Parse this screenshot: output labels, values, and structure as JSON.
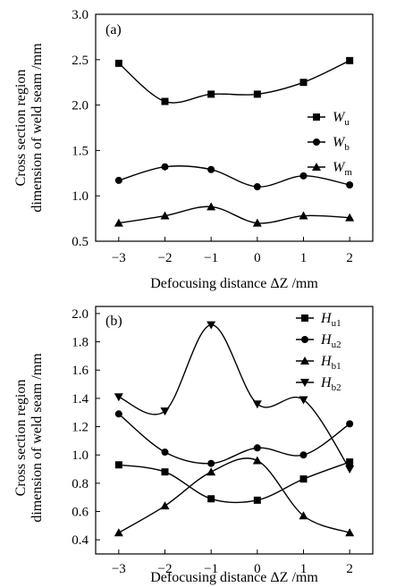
{
  "chart_data": [
    {
      "panel": "(a)",
      "type": "line",
      "xlabel": "Defocusing distance ΔZ /mm",
      "ylabel": [
        "Cross section region",
        "dimension of weld seam /mm"
      ],
      "x": [
        -3,
        -2,
        -1,
        0,
        1,
        2
      ],
      "x_tick_labels": [
        "−3",
        "−2",
        "−1",
        "0",
        "1",
        "2"
      ],
      "ylim": [
        0.5,
        3.0
      ],
      "y_ticks": [
        0.5,
        1.0,
        1.5,
        2.0,
        2.5,
        3.0
      ],
      "y_tick_labels": [
        "0.5",
        "1.0",
        "1.5",
        "2.0",
        "2.5",
        "3.0"
      ],
      "legend_position": "right-middle",
      "grid": false,
      "series": [
        {
          "name": "W",
          "sub": "u",
          "marker": "square",
          "values": [
            2.46,
            2.04,
            2.12,
            2.12,
            2.25,
            2.49
          ]
        },
        {
          "name": "W",
          "sub": "b",
          "marker": "circle",
          "values": [
            1.17,
            1.32,
            1.29,
            1.1,
            1.22,
            1.12
          ]
        },
        {
          "name": "W",
          "sub": "m",
          "marker": "triangle-up",
          "values": [
            0.7,
            0.78,
            0.88,
            0.7,
            0.78,
            0.76
          ]
        }
      ]
    },
    {
      "panel": "(b)",
      "type": "line",
      "xlabel": "Defocusing distance ΔZ /mm",
      "ylabel": [
        "Cross section region",
        "dimension of weld seam /mm"
      ],
      "x": [
        -3,
        -2,
        -1,
        0,
        1,
        2
      ],
      "x_tick_labels": [
        "−3",
        "−2",
        "−1",
        "0",
        "1",
        "2"
      ],
      "ylim": [
        0.3,
        2.05
      ],
      "y_ticks": [
        0.4,
        0.6,
        0.8,
        1.0,
        1.2,
        1.4,
        1.6,
        1.8,
        2.0
      ],
      "y_tick_labels": [
        "0.4",
        "0.6",
        "0.8",
        "1.0",
        "1.2",
        "1.4",
        "1.6",
        "1.8",
        "2.0"
      ],
      "legend_position": "top-right",
      "grid": false,
      "series": [
        {
          "name": "H",
          "sub": "u1",
          "marker": "square",
          "values": [
            0.93,
            0.88,
            0.69,
            0.68,
            0.83,
            0.95
          ]
        },
        {
          "name": "H",
          "sub": "u2",
          "marker": "circle",
          "values": [
            1.29,
            1.02,
            0.94,
            1.05,
            1.0,
            1.22
          ]
        },
        {
          "name": "H",
          "sub": "b1",
          "marker": "triangle-up",
          "values": [
            0.45,
            0.64,
            0.88,
            0.96,
            0.57,
            0.45
          ]
        },
        {
          "name": "H",
          "sub": "b2",
          "marker": "triangle-down",
          "values": [
            1.41,
            1.31,
            1.92,
            1.36,
            1.39,
            0.9
          ]
        }
      ]
    }
  ]
}
